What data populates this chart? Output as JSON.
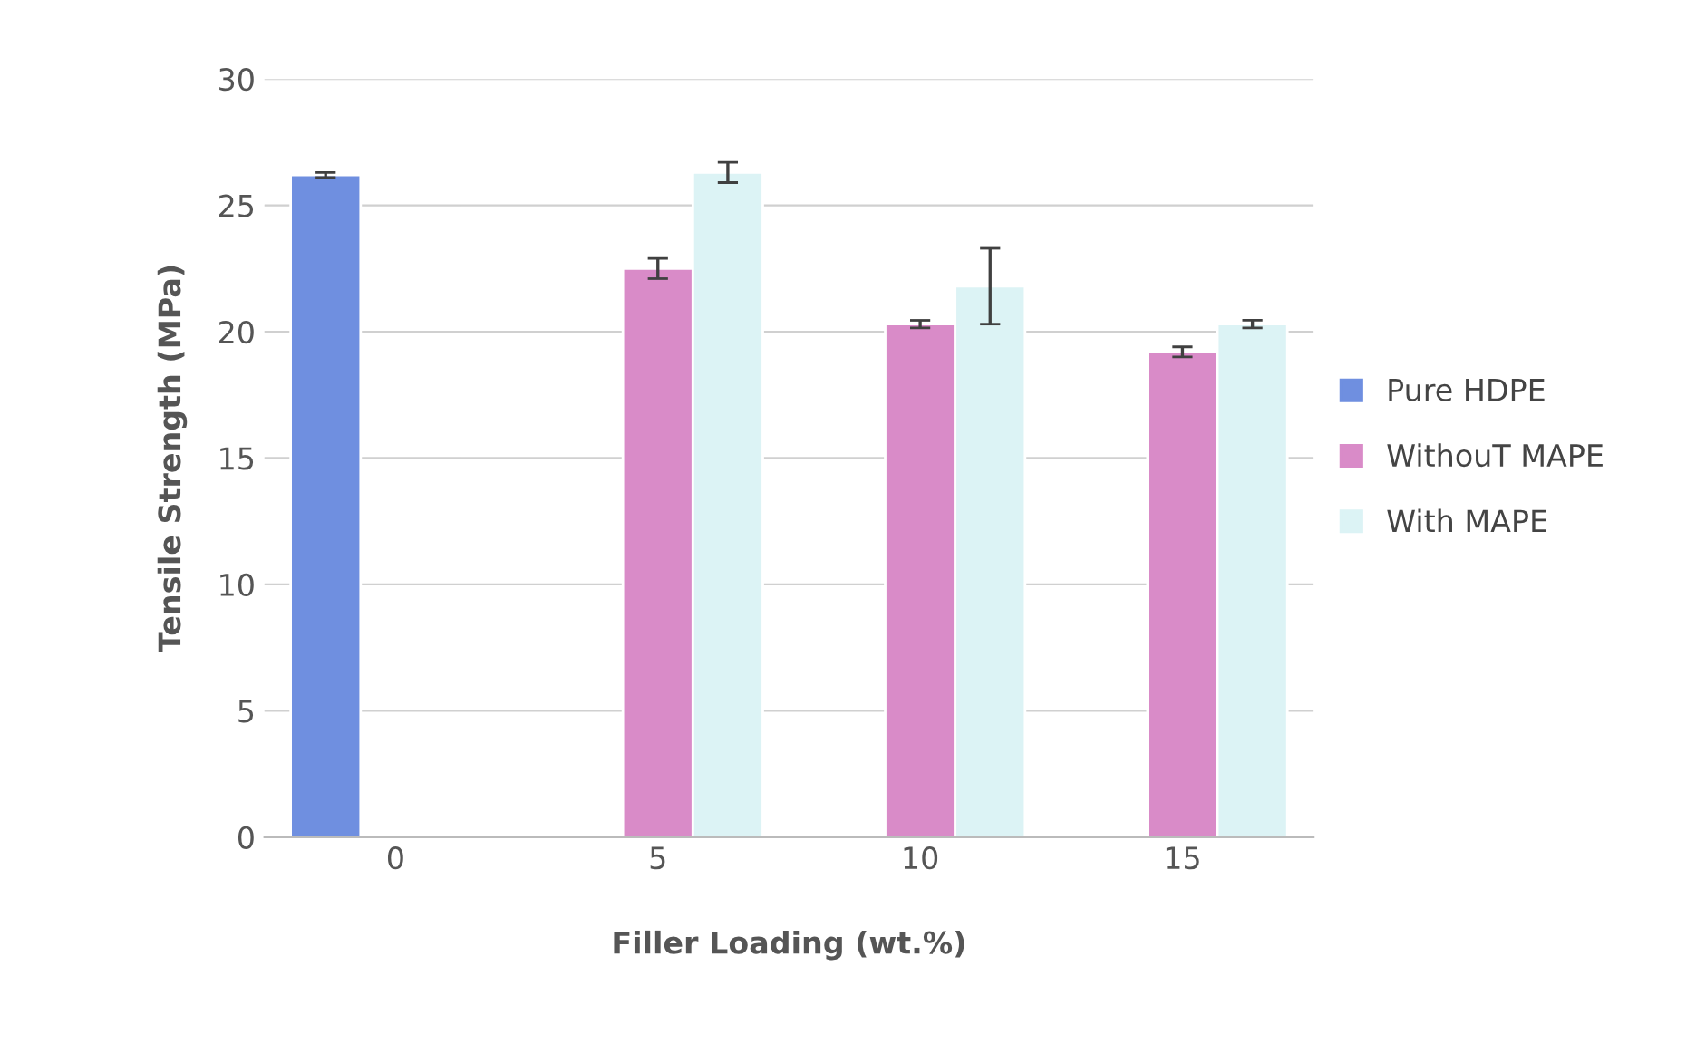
{
  "chart_data": {
    "type": "bar",
    "xlabel": "Filler Loading (wt.%)",
    "ylabel": "Tensile Strength (MPa)",
    "categories": [
      "0",
      "5",
      "10",
      "15"
    ],
    "series": [
      {
        "name": "Pure HDPE",
        "color": "#6f8fe0",
        "values": [
          26.2,
          null,
          null,
          null
        ],
        "errors": [
          0.1,
          null,
          null,
          null
        ]
      },
      {
        "name": "WithouT MAPE",
        "color": "#d98bc8",
        "values": [
          null,
          22.5,
          20.3,
          19.2
        ],
        "errors": [
          null,
          0.4,
          0.15,
          0.2
        ]
      },
      {
        "name": "With MAPE",
        "color": "#dcf3f5",
        "values": [
          null,
          26.3,
          21.8,
          20.3
        ],
        "errors": [
          null,
          0.4,
          1.5,
          0.15
        ]
      }
    ],
    "ylim": [
      0,
      30
    ],
    "yticks": [
      0,
      5,
      10,
      15,
      20,
      25,
      30
    ],
    "grid": "y",
    "legend": "right"
  }
}
